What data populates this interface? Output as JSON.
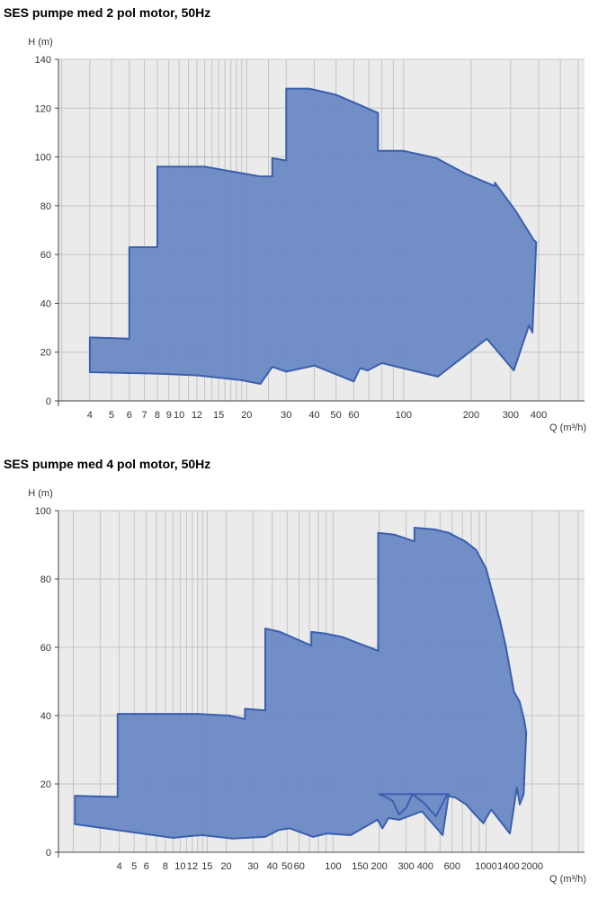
{
  "charts": [
    {
      "title": "SES pumpe med 2 pol motor, 50Hz"
    },
    {
      "title": "SES pumpe med 4 pol motor, 50Hz"
    }
  ],
  "chart_data": [
    {
      "type": "area",
      "title": "SES pumpe med 2 pol motor, 50Hz",
      "ylabel": "H (m)",
      "xlabel": "Q (m³/h)",
      "x_scale": "log",
      "xlim": [
        2.9,
        640
      ],
      "ylim": [
        0,
        140
      ],
      "yticks": [
        0,
        20,
        40,
        60,
        80,
        100,
        120,
        140
      ],
      "xtick_labels": [
        {
          "label": "4",
          "value": 4
        },
        {
          "label": "5",
          "value": 5
        },
        {
          "label": "6",
          "value": 6
        },
        {
          "label": "7",
          "value": 7
        },
        {
          "label": "8",
          "value": 8
        },
        {
          "label": "9",
          "value": 9
        },
        {
          "label": "10",
          "value": 10
        },
        {
          "label": "12",
          "value": 12
        },
        {
          "label": "15",
          "value": 15
        },
        {
          "label": "20",
          "value": 20
        },
        {
          "label": "30",
          "value": 30
        },
        {
          "label": "40",
          "value": 40
        },
        {
          "label": "50",
          "value": 50
        },
        {
          "label": "60",
          "value": 60
        },
        {
          "label": "100",
          "value": 100
        },
        {
          "label": "200",
          "value": 200
        },
        {
          "label": "300",
          "value": 300
        },
        {
          "label": "400",
          "value": 400
        }
      ],
      "grid_x": [
        3,
        4,
        5,
        6,
        7,
        8,
        9,
        10,
        11,
        12,
        13,
        14,
        15,
        16,
        17,
        18,
        19,
        20,
        25,
        30,
        40,
        50,
        60,
        70,
        80,
        90,
        100,
        200,
        300,
        400,
        500,
        600
      ],
      "grid_y": [
        0,
        20,
        40,
        60,
        80,
        100,
        120,
        140
      ],
      "color": "#6c89c4",
      "edge_color": "#3a5fae",
      "envelope": [
        [
          4,
          26
        ],
        [
          6,
          25.5
        ],
        [
          6,
          63
        ],
        [
          8,
          63
        ],
        [
          8,
          96
        ],
        [
          13,
          96
        ],
        [
          23,
          92
        ],
        [
          26,
          92
        ],
        [
          26,
          99.5
        ],
        [
          30,
          98.5
        ],
        [
          30,
          128
        ],
        [
          38,
          128
        ],
        [
          50,
          125.5
        ],
        [
          63,
          121.5
        ],
        [
          77,
          118
        ],
        [
          77,
          102.5
        ],
        [
          100,
          102.5
        ],
        [
          140,
          99.5
        ],
        [
          190,
          93
        ],
        [
          255,
          88
        ],
        [
          255,
          89.5
        ],
        [
          315,
          78
        ],
        [
          380,
          66
        ],
        [
          390,
          65
        ],
        [
          375,
          28
        ],
        [
          362,
          31
        ],
        [
          310,
          12.5
        ],
        [
          235,
          25.5
        ],
        [
          142,
          10
        ],
        [
          80,
          15.5
        ],
        [
          69,
          12.5
        ],
        [
          64,
          13.5
        ],
        [
          60,
          8
        ],
        [
          40,
          14.5
        ],
        [
          30,
          12
        ],
        [
          26,
          14
        ],
        [
          23,
          7
        ],
        [
          19,
          8.5
        ],
        [
          12,
          10.5
        ],
        [
          8,
          11.2
        ],
        [
          4,
          11.8
        ]
      ]
    },
    {
      "type": "area",
      "title": "SES pumpe med 4 pol motor, 50Hz",
      "ylabel": "H (m)",
      "xlabel": "Q (m³/h)",
      "x_scale": "log",
      "xlim": [
        1.6,
        4400
      ],
      "ylim": [
        0,
        100
      ],
      "yticks": [
        0,
        20,
        40,
        60,
        80,
        100
      ],
      "xtick_labels": [
        {
          "label": "4",
          "value": 4
        },
        {
          "label": "5",
          "value": 5
        },
        {
          "label": "6",
          "value": 6
        },
        {
          "label": "8",
          "value": 8
        },
        {
          "label": "10",
          "value": 10
        },
        {
          "label": "12",
          "value": 12
        },
        {
          "label": "15",
          "value": 15
        },
        {
          "label": "20",
          "value": 20
        },
        {
          "label": "30",
          "value": 30
        },
        {
          "label": "40",
          "value": 40
        },
        {
          "label": "50",
          "value": 50
        },
        {
          "label": "60",
          "value": 60
        },
        {
          "label": "100",
          "value": 100
        },
        {
          "label": "150",
          "value": 150
        },
        {
          "label": "200",
          "value": 200
        },
        {
          "label": "300",
          "value": 300
        },
        {
          "label": "400",
          "value": 400
        },
        {
          "label": "600",
          "value": 600
        },
        {
          "label": "1000",
          "value": 1000
        },
        {
          "label": "1400",
          "value": 1400
        },
        {
          "label": "2000",
          "value": 2000
        }
      ],
      "grid_x": [
        2,
        3,
        4,
        5,
        6,
        7,
        8,
        9,
        10,
        11,
        12,
        13,
        14,
        15,
        20,
        30,
        40,
        50,
        60,
        70,
        80,
        90,
        100,
        200,
        300,
        400,
        500,
        600,
        700,
        800,
        900,
        1000,
        2000,
        3000,
        4000
      ],
      "grid_y": [
        0,
        20,
        40,
        60,
        80,
        100
      ],
      "color": "#6c89c4",
      "edge_color": "#3a5fae",
      "envelope": [
        [
          2.05,
          16.5
        ],
        [
          3.9,
          16.2
        ],
        [
          3.9,
          40.5
        ],
        [
          13,
          40.5
        ],
        [
          21,
          40
        ],
        [
          26.5,
          39
        ],
        [
          26.5,
          42
        ],
        [
          36,
          41.5
        ],
        [
          36,
          65.5
        ],
        [
          45,
          64.5
        ],
        [
          57,
          62.5
        ],
        [
          72,
          60.5
        ],
        [
          72,
          64.5
        ],
        [
          90,
          64
        ],
        [
          115,
          63
        ],
        [
          150,
          61
        ],
        [
          197,
          59
        ],
        [
          197,
          93.5
        ],
        [
          250,
          93
        ],
        [
          340,
          91
        ],
        [
          340,
          95
        ],
        [
          460,
          94.5
        ],
        [
          570,
          93.5
        ],
        [
          730,
          91
        ],
        [
          860,
          88.5
        ],
        [
          1000,
          83
        ],
        [
          1100,
          76
        ],
        [
          1230,
          68
        ],
        [
          1350,
          60
        ],
        [
          1520,
          47
        ],
        [
          1660,
          44
        ],
        [
          1780,
          38.5
        ],
        [
          1830,
          35
        ],
        [
          1760,
          17
        ],
        [
          1660,
          14
        ],
        [
          1590,
          19
        ],
        [
          1430,
          5.5
        ],
        [
          1080,
          12.5
        ],
        [
          960,
          8.5
        ],
        [
          850,
          11
        ],
        [
          740,
          14
        ],
        [
          630,
          16
        ],
        [
          550,
          16.5
        ],
        [
          470,
          10.5
        ],
        [
          390,
          14.5
        ],
        [
          330,
          17
        ],
        [
          300,
          13
        ],
        [
          270,
          11
        ],
        [
          245,
          15
        ],
        [
          225,
          16
        ],
        [
          200,
          17
        ],
        [
          570,
          17
        ],
        [
          520,
          5
        ],
        [
          380,
          12
        ],
        [
          270,
          9.5
        ],
        [
          230,
          10
        ],
        [
          210,
          7
        ],
        [
          195,
          9.5
        ],
        [
          130,
          5
        ],
        [
          91,
          5.5
        ],
        [
          74,
          4.5
        ],
        [
          52,
          7
        ],
        [
          44,
          6.5
        ],
        [
          36,
          4.5
        ],
        [
          22,
          4
        ],
        [
          14,
          5
        ],
        [
          12,
          4.8
        ],
        [
          9,
          4.2
        ],
        [
          2.05,
          8.2
        ]
      ]
    }
  ]
}
